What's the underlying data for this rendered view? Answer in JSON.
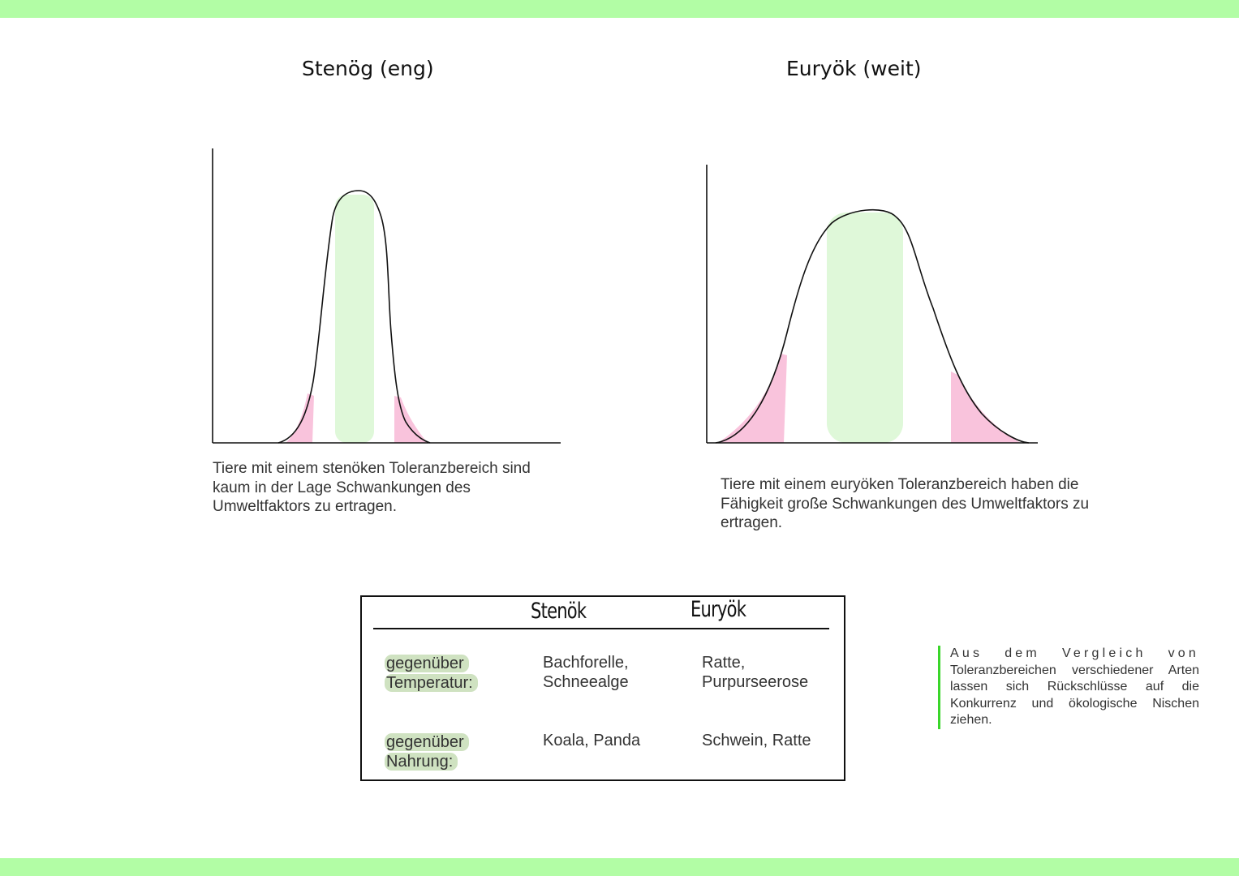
{
  "colors": {
    "band": "#b2fda5",
    "optimum_fill": "#dff8d9",
    "pessimum_fill": "#f9c3dc",
    "highlight": "#cfe2c1",
    "note_bar": "#3ad62a"
  },
  "titles": {
    "left": "Stenög (eng)",
    "right": "Euryök (weit)"
  },
  "descriptions": {
    "left": [
      "Tiere mit einem stenöken Toleranzbereich sind",
      "kaum in der Lage Schwankungen des",
      "Umweltfaktors zu ertragen."
    ],
    "right": [
      "Tiere mit einem euryöken Toleranzbereich haben die",
      "Fähigkeit große Schwankungen des Umweltfaktors zu",
      "ertragen."
    ]
  },
  "table": {
    "headers": [
      "Stenök",
      "Euryök"
    ],
    "rows": [
      {
        "label_1": "gegenüber",
        "label_2": "Temperatur:",
        "stenoek_1": "Bachforelle,",
        "stenoek_2": "Schneealge",
        "euryoek_1": "Ratte,",
        "euryoek_2": "Purpurseerose"
      },
      {
        "label_1": "gegenüber",
        "label_2": "Nahrung:",
        "stenoek_1": "Koala, Panda",
        "euryoek_1": "Schwein, Ratte"
      }
    ]
  },
  "note": {
    "line1": "Aus dem Vergleich von",
    "rest": "Toleranzbereichen verschiedener Arten lassen sich Rückschlüsse auf die Konkurrenz und ökologische Nischen ziehen."
  }
}
